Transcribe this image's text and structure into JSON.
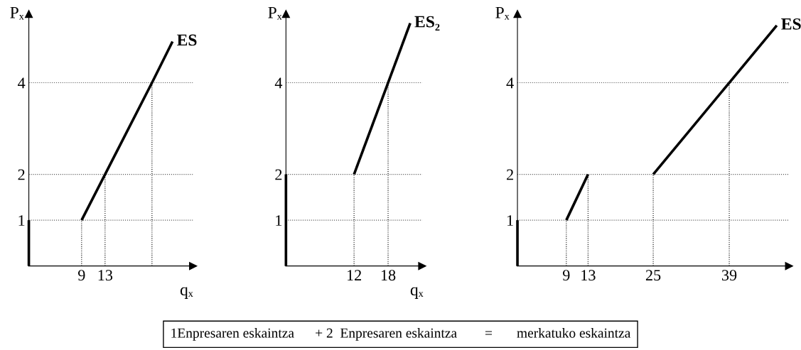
{
  "chart_data": [
    {
      "type": "line",
      "xlabel": "qₓ",
      "ylabel": "Pₓ",
      "xlim": [
        0,
        28
      ],
      "ylim": [
        0,
        5.5
      ],
      "xticks": [
        9,
        13
      ],
      "yticks": [
        1,
        2,
        4
      ],
      "grid": false,
      "legend": false,
      "series": [
        {
          "name": "ES",
          "color": "#000000",
          "line_style": "solid",
          "x": [
            9,
            13,
            21,
            24.5
          ],
          "values": [
            1,
            2,
            4,
            4.9
          ]
        },
        {
          "color": "#000000",
          "line_style": "solid",
          "x": [
            0,
            0
          ],
          "values": [
            0,
            1
          ]
        },
        {
          "color": "#000000",
          "line_style": "dotted",
          "x": [
            9,
            9
          ],
          "values": [
            0,
            1
          ]
        },
        {
          "color": "#000000",
          "line_style": "dotted",
          "x": [
            13,
            13
          ],
          "values": [
            0,
            2
          ]
        },
        {
          "color": "#000000",
          "line_style": "dotted",
          "x": [
            21,
            21
          ],
          "values": [
            0,
            4
          ]
        }
      ],
      "ref_lines": [
        {
          "axis": "y",
          "value": 1,
          "color": "#555555",
          "line_style": "dotted"
        },
        {
          "axis": "y",
          "value": 2,
          "color": "#555555",
          "line_style": "dotted"
        },
        {
          "axis": "y",
          "value": 4,
          "color": "#555555",
          "line_style": "dotted"
        }
      ],
      "annotations": [
        "1Enpresaren eskaintza      + 2  Enpresaren eskaintza        =       merkatuko eskaintza"
      ]
    },
    {
      "type": "line",
      "xlabel": "qₓ",
      "ylabel": "Pₓ",
      "xlim": [
        0,
        24
      ],
      "ylim": [
        0,
        5.5
      ],
      "xticks": [
        12,
        18
      ],
      "yticks": [
        1,
        2,
        4
      ],
      "grid": false,
      "legend": false,
      "series": [
        {
          "name": "ES₂",
          "color": "#000000",
          "line_style": "solid",
          "x": [
            12,
            18,
            21.9
          ],
          "values": [
            2,
            4,
            5.3
          ]
        },
        {
          "color": "#000000",
          "line_style": "solid",
          "x": [
            0,
            0
          ],
          "values": [
            0,
            2
          ]
        },
        {
          "color": "#000000",
          "line_style": "dotted",
          "x": [
            12,
            12
          ],
          "values": [
            0,
            2
          ]
        },
        {
          "color": "#000000",
          "line_style": "dotted",
          "x": [
            18,
            18
          ],
          "values": [
            0,
            4
          ]
        }
      ],
      "ref_lines": [
        {
          "axis": "y",
          "value": 1,
          "color": "#555555",
          "line_style": "dotted"
        },
        {
          "axis": "y",
          "value": 2,
          "color": "#555555",
          "line_style": "dotted"
        },
        {
          "axis": "y",
          "value": 4,
          "color": "#555555",
          "line_style": "dotted"
        }
      ]
    },
    {
      "type": "line",
      "ylabel": "Pₓ",
      "xlim": [
        0,
        50
      ],
      "ylim": [
        0,
        5.5
      ],
      "xticks": [
        9,
        13,
        25,
        39
      ],
      "yticks": [
        1,
        2,
        4
      ],
      "grid": false,
      "legend": false,
      "series": [
        {
          "color": "#000000",
          "line_style": "solid",
          "x": [
            9,
            13
          ],
          "values": [
            1,
            2
          ]
        },
        {
          "name": "ES",
          "color": "#000000",
          "line_style": "solid",
          "x": [
            25,
            39,
            47.75
          ],
          "values": [
            2,
            4,
            5.25
          ]
        },
        {
          "color": "#000000",
          "line_style": "solid",
          "x": [
            0,
            0
          ],
          "values": [
            0,
            1
          ]
        },
        {
          "color": "#000000",
          "line_style": "dotted",
          "x": [
            9,
            9
          ],
          "values": [
            0,
            1
          ]
        },
        {
          "color": "#000000",
          "line_style": "dotted",
          "x": [
            13,
            13
          ],
          "values": [
            0,
            2
          ]
        },
        {
          "color": "#000000",
          "line_style": "dotted",
          "x": [
            25,
            25
          ],
          "values": [
            0,
            2
          ]
        },
        {
          "color": "#000000",
          "line_style": "dotted",
          "x": [
            39,
            39
          ],
          "values": [
            0,
            4
          ]
        }
      ],
      "ref_lines": [
        {
          "axis": "y",
          "value": 1,
          "color": "#555555",
          "line_style": "dotted"
        },
        {
          "axis": "y",
          "value": 2,
          "color": "#555555",
          "line_style": "dotted"
        },
        {
          "axis": "y",
          "value": 4,
          "color": "#555555",
          "line_style": "dotted"
        }
      ]
    }
  ]
}
